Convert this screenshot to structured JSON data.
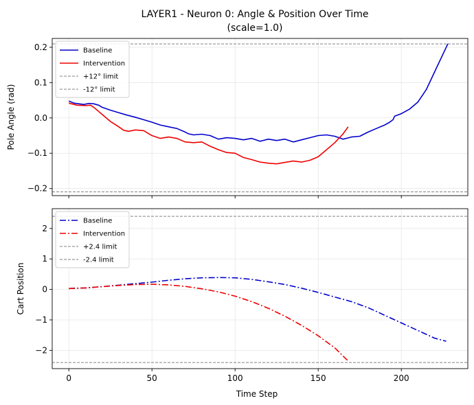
{
  "title_line1": "LAYER1 - Neuron 0: Angle & Position Over Time",
  "title_line2": "(scale=1.0)",
  "chart_data": [
    {
      "type": "line",
      "title": "LAYER1 - Neuron 0: Angle & Position Over Time (scale=1.0)",
      "xlabel": "",
      "ylabel": "Pole Angle (rad)",
      "xlim": [
        -10,
        240
      ],
      "ylim": [
        -0.22,
        0.225
      ],
      "xticks": [
        0,
        50,
        100,
        150,
        200
      ],
      "yticks": [
        -0.2,
        -0.1,
        0.0,
        0.1,
        0.2
      ],
      "ytick_labels": [
        "−0.2",
        "−0.1",
        "0.0",
        "0.1",
        "0.2"
      ],
      "grid": true,
      "legend_position": "upper-left",
      "series": [
        {
          "name": "Baseline",
          "color": "#0000cc",
          "style": "solid",
          "points": [
            [
              0,
              0.048
            ],
            [
              3,
              0.042
            ],
            [
              6,
              0.04
            ],
            [
              9,
              0.038
            ],
            [
              12,
              0.041
            ],
            [
              15,
              0.04
            ],
            [
              18,
              0.036
            ],
            [
              20,
              0.03
            ],
            [
              25,
              0.022
            ],
            [
              30,
              0.015
            ],
            [
              35,
              0.008
            ],
            [
              40,
              0.002
            ],
            [
              45,
              -0.005
            ],
            [
              50,
              -0.012
            ],
            [
              55,
              -0.02
            ],
            [
              60,
              -0.025
            ],
            [
              65,
              -0.03
            ],
            [
              70,
              -0.04
            ],
            [
              72,
              -0.045
            ],
            [
              75,
              -0.048
            ],
            [
              80,
              -0.046
            ],
            [
              85,
              -0.05
            ],
            [
              90,
              -0.06
            ],
            [
              95,
              -0.056
            ],
            [
              100,
              -0.058
            ],
            [
              105,
              -0.062
            ],
            [
              110,
              -0.058
            ],
            [
              115,
              -0.066
            ],
            [
              120,
              -0.06
            ],
            [
              125,
              -0.064
            ],
            [
              130,
              -0.06
            ],
            [
              135,
              -0.068
            ],
            [
              140,
              -0.062
            ],
            [
              145,
              -0.056
            ],
            [
              150,
              -0.05
            ],
            [
              155,
              -0.048
            ],
            [
              160,
              -0.052
            ],
            [
              165,
              -0.06
            ],
            [
              170,
              -0.054
            ],
            [
              175,
              -0.052
            ],
            [
              180,
              -0.04
            ],
            [
              185,
              -0.03
            ],
            [
              190,
              -0.02
            ],
            [
              193,
              -0.012
            ],
            [
              195,
              -0.005
            ],
            [
              196,
              0.005
            ],
            [
              200,
              0.012
            ],
            [
              205,
              0.025
            ],
            [
              210,
              0.045
            ],
            [
              215,
              0.08
            ],
            [
              220,
              0.13
            ],
            [
              225,
              0.18
            ],
            [
              228,
              0.21
            ]
          ]
        },
        {
          "name": "Intervention",
          "color": "#ee0000",
          "style": "solid",
          "points": [
            [
              0,
              0.042
            ],
            [
              5,
              0.036
            ],
            [
              10,
              0.035
            ],
            [
              13,
              0.036
            ],
            [
              15,
              0.03
            ],
            [
              20,
              0.01
            ],
            [
              25,
              -0.01
            ],
            [
              30,
              -0.025
            ],
            [
              33,
              -0.035
            ],
            [
              36,
              -0.038
            ],
            [
              40,
              -0.034
            ],
            [
              45,
              -0.036
            ],
            [
              50,
              -0.05
            ],
            [
              55,
              -0.058
            ],
            [
              60,
              -0.054
            ],
            [
              65,
              -0.058
            ],
            [
              70,
              -0.068
            ],
            [
              75,
              -0.07
            ],
            [
              80,
              -0.068
            ],
            [
              85,
              -0.08
            ],
            [
              90,
              -0.09
            ],
            [
              95,
              -0.098
            ],
            [
              100,
              -0.1
            ],
            [
              105,
              -0.112
            ],
            [
              110,
              -0.118
            ],
            [
              115,
              -0.125
            ],
            [
              120,
              -0.128
            ],
            [
              125,
              -0.13
            ],
            [
              130,
              -0.126
            ],
            [
              135,
              -0.122
            ],
            [
              140,
              -0.125
            ],
            [
              145,
              -0.12
            ],
            [
              150,
              -0.11
            ],
            [
              155,
              -0.09
            ],
            [
              160,
              -0.07
            ],
            [
              165,
              -0.045
            ],
            [
              168,
              -0.025
            ]
          ]
        }
      ],
      "reference_lines": [
        {
          "name": "+12° limit",
          "value": 0.2094,
          "color": "#808080",
          "style": "dashed"
        },
        {
          "name": "-12° limit",
          "value": -0.2094,
          "color": "#808080",
          "style": "dashed"
        }
      ]
    },
    {
      "type": "line",
      "title": "",
      "xlabel": "Time Step",
      "ylabel": "Cart Position",
      "xlim": [
        -10,
        240
      ],
      "ylim": [
        -2.6,
        2.65
      ],
      "xticks": [
        0,
        50,
        100,
        150,
        200
      ],
      "xtick_labels": [
        "0",
        "50",
        "100",
        "150",
        "200"
      ],
      "yticks": [
        -2,
        -1,
        0,
        1,
        2
      ],
      "ytick_labels": [
        "−2",
        "−1",
        "0",
        "1",
        "2"
      ],
      "grid": true,
      "legend_position": "upper-left",
      "series": [
        {
          "name": "Baseline",
          "color": "#0000cc",
          "style": "dashdot",
          "points": [
            [
              0,
              0.03
            ],
            [
              10,
              0.05
            ],
            [
              20,
              0.09
            ],
            [
              30,
              0.14
            ],
            [
              40,
              0.19
            ],
            [
              50,
              0.24
            ],
            [
              60,
              0.3
            ],
            [
              70,
              0.35
            ],
            [
              80,
              0.38
            ],
            [
              90,
              0.39
            ],
            [
              100,
              0.38
            ],
            [
              110,
              0.33
            ],
            [
              120,
              0.25
            ],
            [
              130,
              0.16
            ],
            [
              140,
              0.04
            ],
            [
              150,
              -0.1
            ],
            [
              160,
              -0.25
            ],
            [
              170,
              -0.4
            ],
            [
              180,
              -0.6
            ],
            [
              190,
              -0.85
            ],
            [
              200,
              -1.1
            ],
            [
              210,
              -1.35
            ],
            [
              220,
              -1.6
            ],
            [
              227,
              -1.7
            ]
          ]
        },
        {
          "name": "Intervention",
          "color": "#ee0000",
          "style": "dashdot",
          "points": [
            [
              0,
              0.03
            ],
            [
              10,
              0.05
            ],
            [
              20,
              0.09
            ],
            [
              30,
              0.13
            ],
            [
              40,
              0.16
            ],
            [
              50,
              0.17
            ],
            [
              60,
              0.15
            ],
            [
              70,
              0.1
            ],
            [
              80,
              0.02
            ],
            [
              90,
              -0.08
            ],
            [
              100,
              -0.22
            ],
            [
              110,
              -0.4
            ],
            [
              120,
              -0.62
            ],
            [
              130,
              -0.88
            ],
            [
              140,
              -1.18
            ],
            [
              150,
              -1.52
            ],
            [
              160,
              -1.92
            ],
            [
              168,
              -2.35
            ]
          ]
        }
      ],
      "reference_lines": [
        {
          "name": "+2.4 limit",
          "value": 2.4,
          "color": "#808080",
          "style": "dashed"
        },
        {
          "name": "-2.4 limit",
          "value": -2.4,
          "color": "#808080",
          "style": "dashed"
        }
      ]
    }
  ]
}
